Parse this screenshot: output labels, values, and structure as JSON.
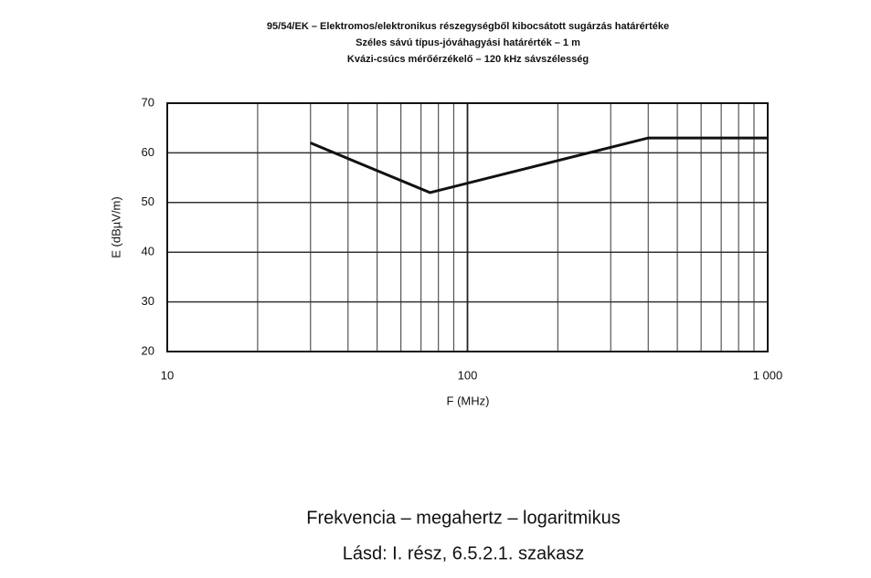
{
  "chart_data": {
    "type": "line",
    "title": [
      "95/54/EK – Elektromos/elektronikus részegységből kibocsátott sugárzás határértéke",
      "Széles sávú típus-jóváhagyási határérték – 1 m",
      "Kvázi-csúcs mérőérzékelő – 120 kHz sávszélesség"
    ],
    "xlabel": "F (MHz)",
    "ylabel": "E (dBµV/m)",
    "x": [
      30,
      75,
      400,
      1000
    ],
    "series": [
      {
        "color": "#111111",
        "values": [
          62,
          52,
          63,
          63
        ]
      }
    ],
    "xlim": [
      10,
      1000
    ],
    "ylim": [
      20,
      70
    ],
    "log_x": true,
    "grid": true,
    "xticks": [
      10,
      100,
      {
        "value": 1000,
        "label": "1 000"
      }
    ],
    "xminorticks": [
      20,
      30,
      40,
      50,
      60,
      70,
      80,
      90,
      200,
      300,
      400,
      500,
      600,
      700,
      800,
      900
    ],
    "yticks": [
      20,
      30,
      40,
      50,
      60,
      70
    ],
    "annotations": [
      "Frekvencia – megahertz – logaritmikus",
      "Lásd: I. rész, 6.5.2.1. szakasz"
    ]
  }
}
